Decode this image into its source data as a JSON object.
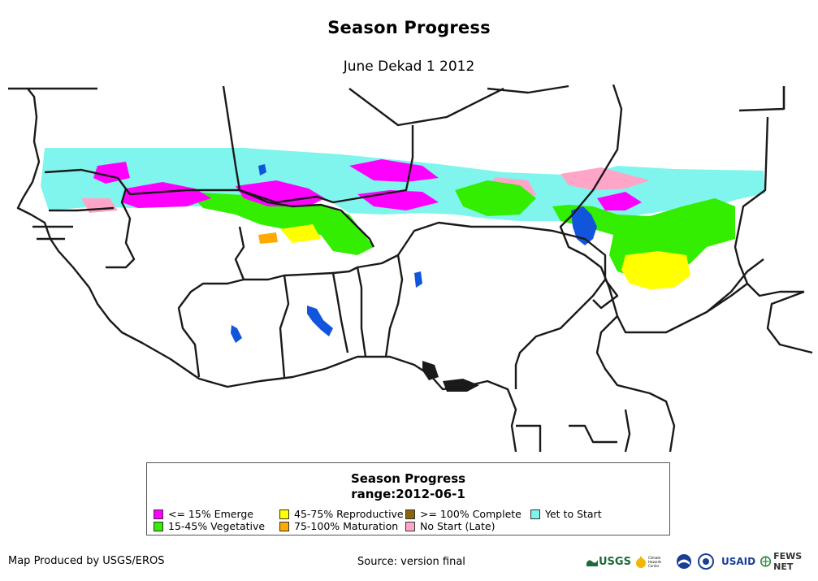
{
  "header": {
    "title": "Season Progress",
    "subtitle": "June Dekad 1 2012"
  },
  "legend": {
    "title": "Season Progress",
    "range": "range:2012-06-1",
    "items": [
      {
        "label": "<= 15% Emerge",
        "color": "#ff00ff"
      },
      {
        "label": "15-45% Vegetative",
        "color": "#33ee00"
      },
      {
        "label": "45-75% Reproductive",
        "color": "#ffff00"
      },
      {
        "label": "75-100% Maturation",
        "color": "#ffaa00"
      },
      {
        "label": ">= 100% Complete",
        "color": "#8b6508"
      },
      {
        "label": "No Start (Late)",
        "color": "#ffa5c8"
      },
      {
        "label": "Yet to Start",
        "color": "#7ff5ee"
      }
    ]
  },
  "map_colors": {
    "water": "#1155dd",
    "border": "#1a1a1a",
    "land": "#ffffff"
  },
  "footer": {
    "left": "Map Produced by USGS/EROS",
    "center": "Source: version final"
  },
  "logos": {
    "usgs": "USGS",
    "chc": "Climate Hazards Center",
    "usaid": "USAID",
    "fewsnet": "FEWS NET"
  }
}
